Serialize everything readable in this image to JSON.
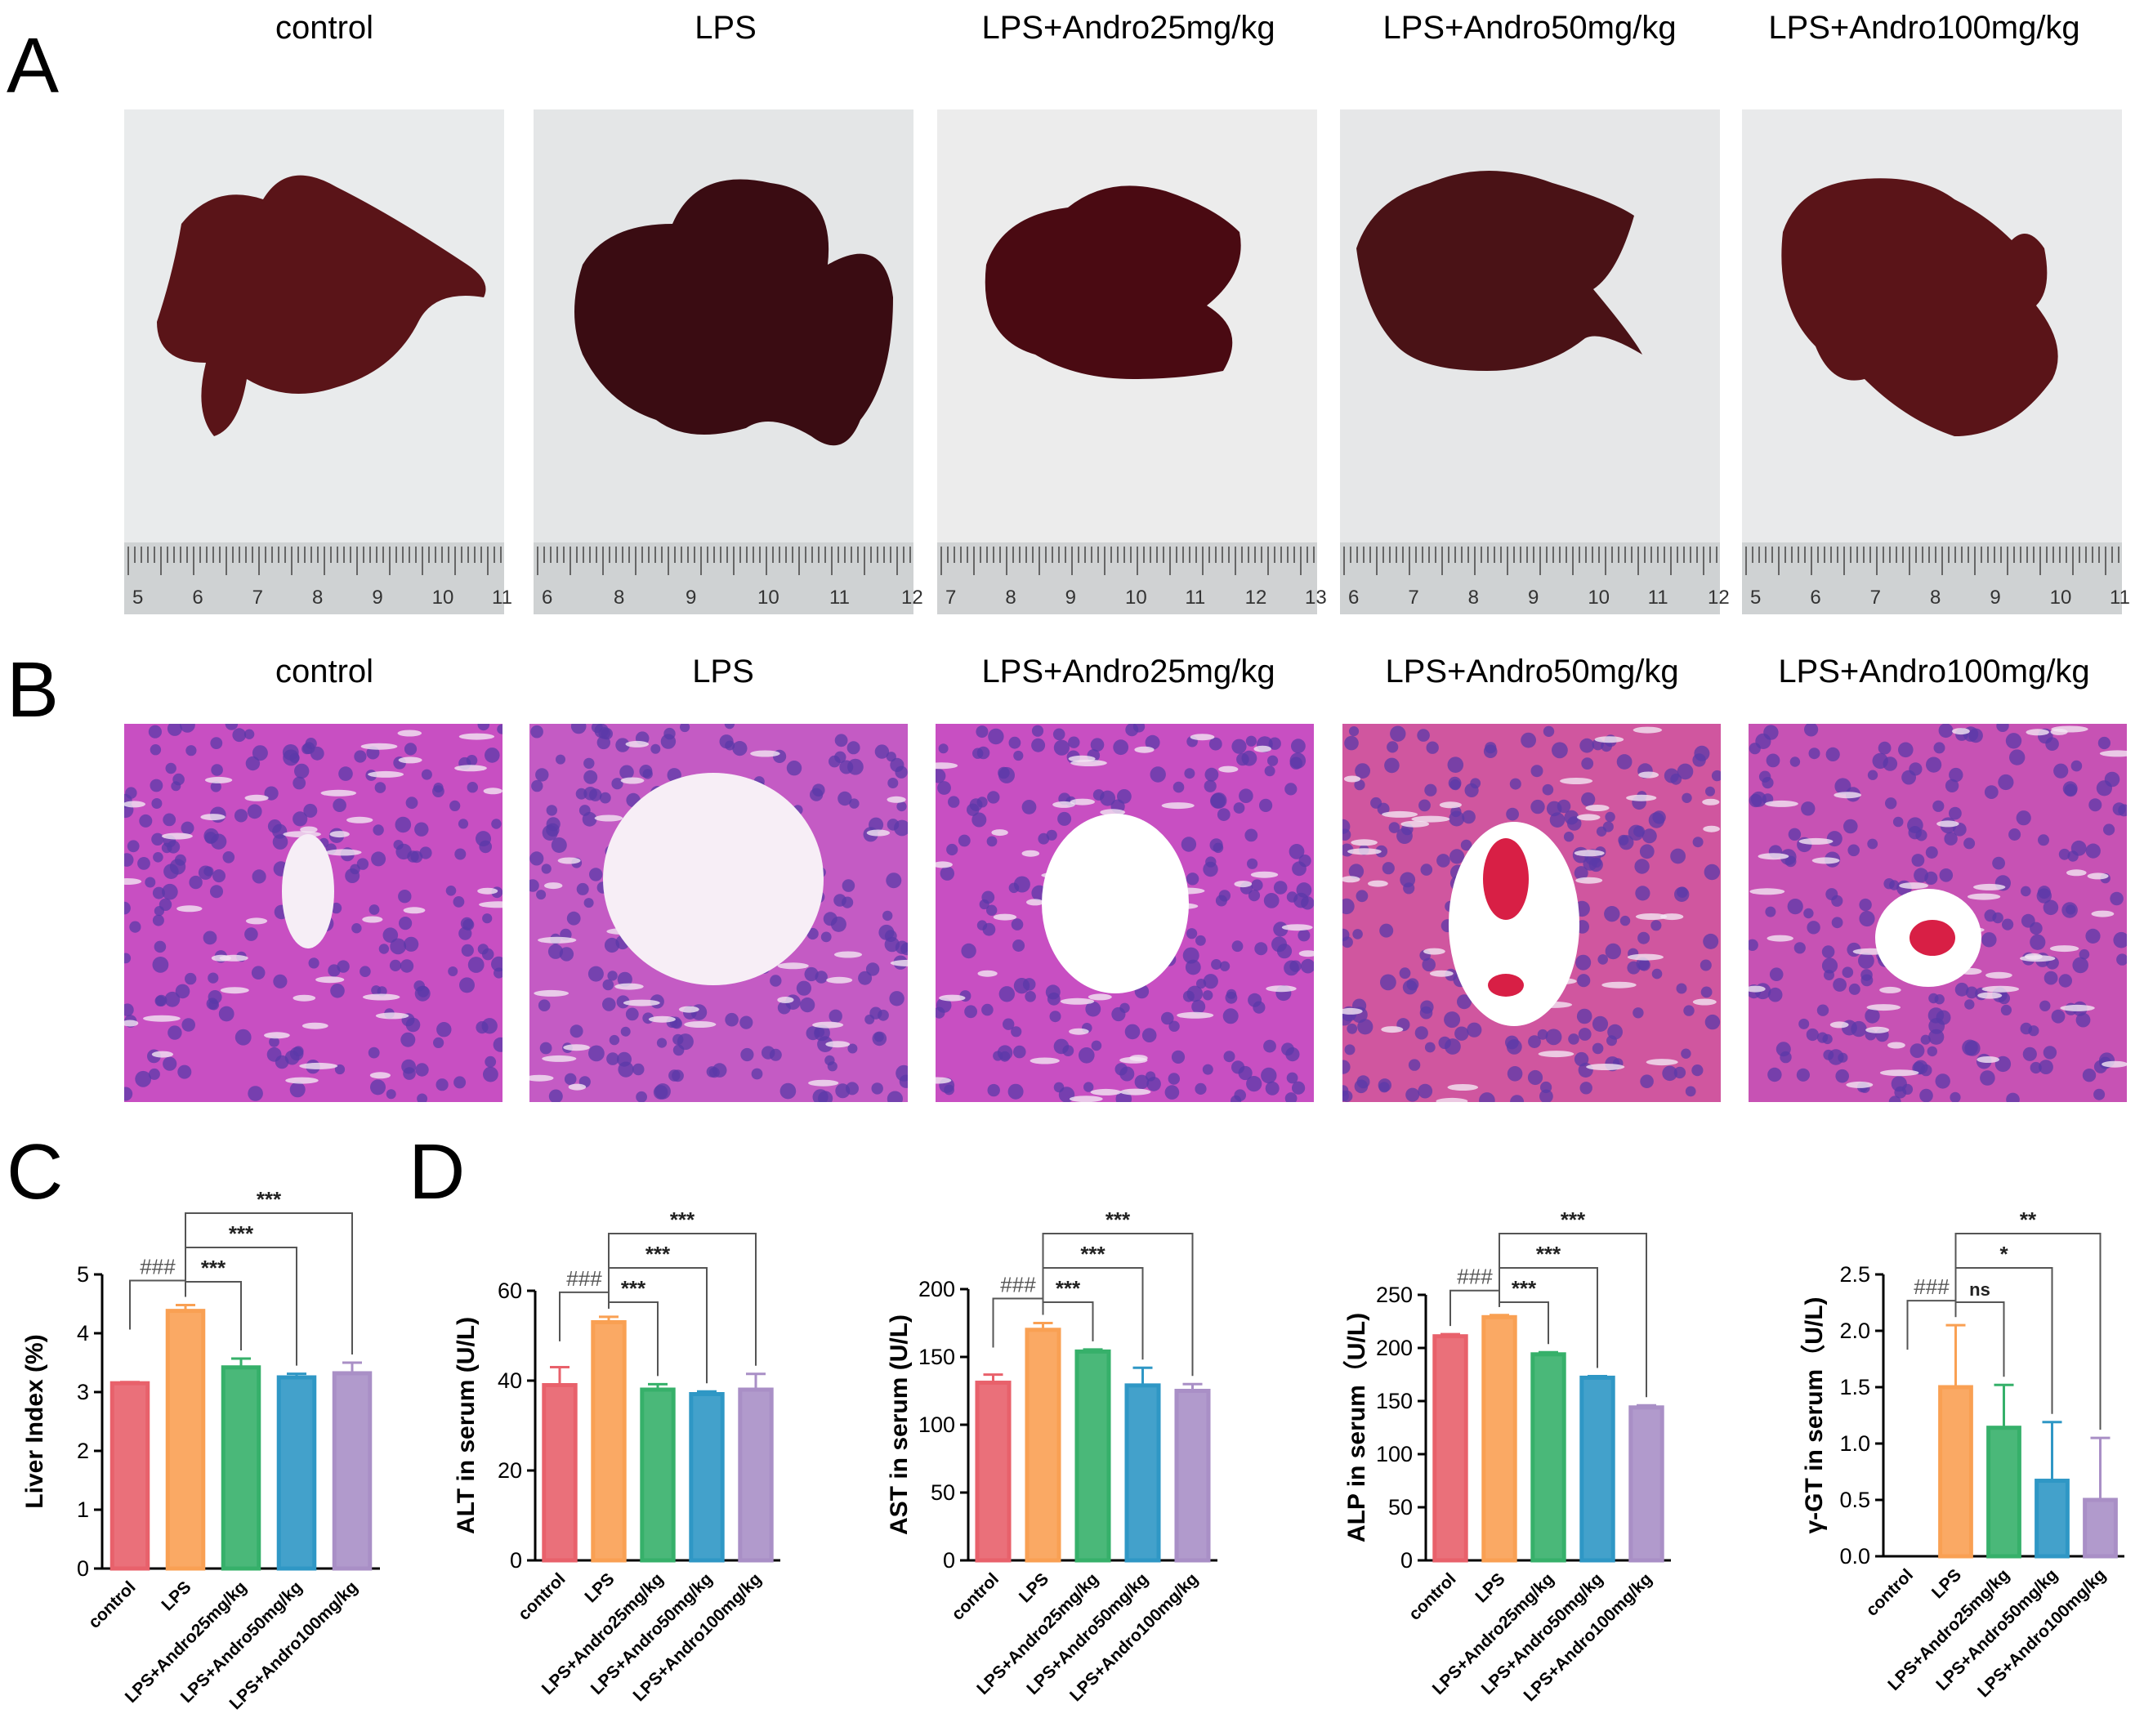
{
  "panels": {
    "a": "A",
    "b": "B",
    "c": "C",
    "d": "D"
  },
  "groups": [
    "control",
    "LPS",
    "LPS+Andro25mg/kg",
    "LPS+Andro50mg/kg",
    "LPS+Andro100mg/kg"
  ],
  "rulers": [
    [
      "5",
      "6",
      "7",
      "8",
      "9",
      "10",
      "11"
    ],
    [
      "6",
      "8",
      "9",
      "10",
      "11",
      "12"
    ],
    [
      "7",
      "8",
      "9",
      "10",
      "11",
      "12",
      "13"
    ],
    [
      "6",
      "7",
      "8",
      "9",
      "10",
      "11",
      "12"
    ],
    [
      "5",
      "6",
      "7",
      "8",
      "9",
      "10",
      "11"
    ]
  ],
  "colors": {
    "control": "#e8616b",
    "LPS": "#f9a053",
    "Andro25": "#36b06a",
    "Andro50": "#2f97c5",
    "Andro100": "#a98fc6",
    "liver": "#5a1418",
    "tissue_bg": "#c84fc2",
    "photo_bg": "#e9ebec"
  },
  "chart_data": [
    {
      "panel": "C",
      "type": "bar",
      "ylabel": "Liver Index (%)",
      "categories": [
        "control",
        "LPS",
        "LPS+Andro25mg/kg",
        "LPS+Andro50mg/kg",
        "LPS+Andro100mg/kg"
      ],
      "values": [
        3.15,
        4.38,
        3.42,
        3.25,
        3.32
      ],
      "errors": [
        0.02,
        0.1,
        0.15,
        0.06,
        0.18
      ],
      "ylim": [
        0,
        5
      ],
      "yticks": [
        "0",
        "1",
        "2",
        "3",
        "4",
        "5"
      ],
      "comparisons": [
        {
          "from": 0,
          "to": 1,
          "label": "###"
        },
        {
          "from": 1,
          "to": 2,
          "label": "***"
        },
        {
          "from": 1,
          "to": 3,
          "label": "***"
        },
        {
          "from": 1,
          "to": 4,
          "label": "***"
        }
      ]
    },
    {
      "panel": "D",
      "type": "bar",
      "ylabel": "ALT in serum (U/L)",
      "categories": [
        "control",
        "LPS",
        "LPS+Andro25mg/kg",
        "LPS+Andro50mg/kg",
        "LPS+Andro100mg/kg"
      ],
      "values": [
        39,
        53,
        38,
        37,
        38
      ],
      "errors": [
        4,
        1.2,
        1.2,
        0.6,
        3.5
      ],
      "ylim": [
        0,
        60
      ],
      "yticks": [
        "0",
        "20",
        "40",
        "60"
      ],
      "comparisons": [
        {
          "from": 0,
          "to": 1,
          "label": "###"
        },
        {
          "from": 1,
          "to": 2,
          "label": "***"
        },
        {
          "from": 1,
          "to": 3,
          "label": "***"
        },
        {
          "from": 1,
          "to": 4,
          "label": "***"
        }
      ]
    },
    {
      "panel": "D",
      "type": "bar",
      "ylabel": "AST in serum (U/L)",
      "categories": [
        "control",
        "LPS",
        "LPS+Andro25mg/kg",
        "LPS+Andro50mg/kg",
        "LPS+Andro100mg/kg"
      ],
      "values": [
        131,
        170,
        154,
        129,
        125
      ],
      "errors": [
        6,
        5,
        1.5,
        13,
        5
      ],
      "ylim": [
        0,
        200
      ],
      "yticks": [
        "0",
        "50",
        "100",
        "150",
        "200"
      ],
      "comparisons": [
        {
          "from": 0,
          "to": 1,
          "label": "###"
        },
        {
          "from": 1,
          "to": 2,
          "label": "***"
        },
        {
          "from": 1,
          "to": 3,
          "label": "***"
        },
        {
          "from": 1,
          "to": 4,
          "label": "***"
        }
      ]
    },
    {
      "panel": "D",
      "type": "bar",
      "ylabel": "ALP in serum（U/L)",
      "categories": [
        "control",
        "LPS",
        "LPS+Andro25mg/kg",
        "LPS+Andro50mg/kg",
        "LPS+Andro100mg/kg"
      ],
      "values": [
        211,
        229,
        194,
        172,
        144
      ],
      "errors": [
        2,
        2,
        2,
        1.5,
        2
      ],
      "ylim": [
        0,
        250
      ],
      "yticks": [
        "0",
        "50",
        "100",
        "150",
        "200",
        "250"
      ],
      "comparisons": [
        {
          "from": 0,
          "to": 1,
          "label": "###"
        },
        {
          "from": 1,
          "to": 2,
          "label": "***"
        },
        {
          "from": 1,
          "to": 3,
          "label": "***"
        },
        {
          "from": 1,
          "to": 4,
          "label": "***"
        }
      ]
    },
    {
      "panel": "D",
      "type": "bar",
      "ylabel": "γ-GT in serum（U/L)",
      "categories": [
        "control",
        "LPS",
        "LPS+Andro25mg/kg",
        "LPS+Andro50mg/kg",
        "LPS+Andro100mg/kg"
      ],
      "values": [
        0,
        1.5,
        1.14,
        0.67,
        0.5
      ],
      "errors": [
        0,
        0.55,
        0.38,
        0.52,
        0.55
      ],
      "ylim": [
        0,
        2.5
      ],
      "yticks": [
        "0.0",
        "0.5",
        "1.0",
        "1.5",
        "2.0",
        "2.5"
      ],
      "comparisons": [
        {
          "from": 0,
          "to": 1,
          "label": "###"
        },
        {
          "from": 1,
          "to": 2,
          "label": "ns"
        },
        {
          "from": 1,
          "to": 3,
          "label": "*"
        },
        {
          "from": 1,
          "to": 4,
          "label": "**"
        }
      ]
    }
  ]
}
